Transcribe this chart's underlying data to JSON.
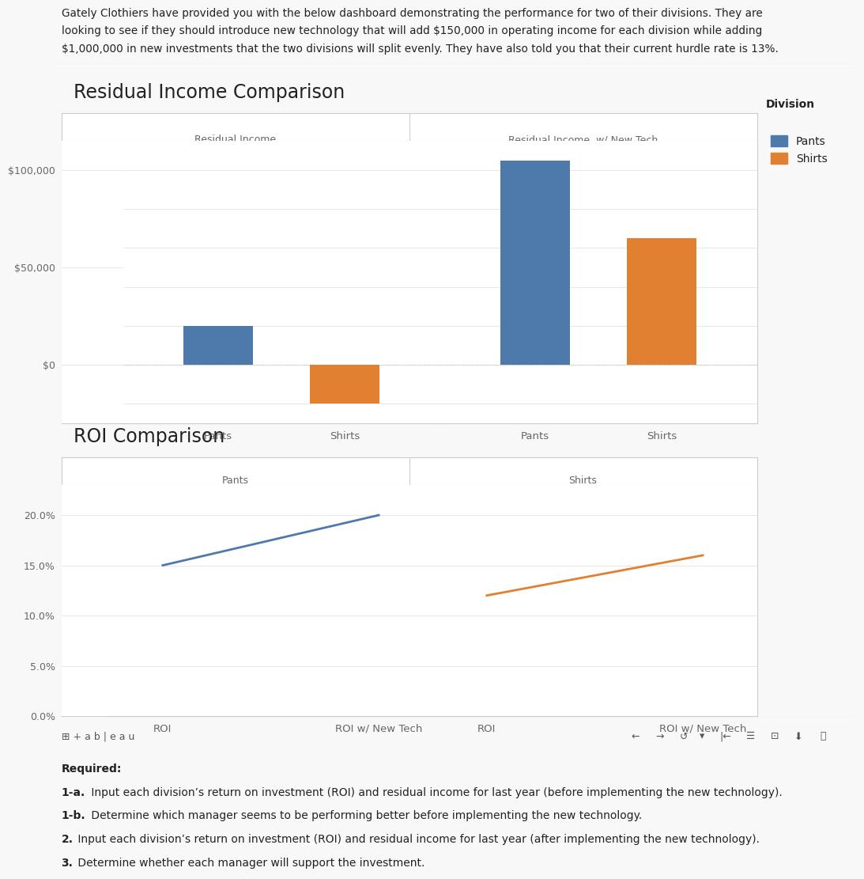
{
  "intro_text_lines": [
    "Gately Clothiers have provided you with the below dashboard demonstrating the performance for two of their divisions. They are",
    "looking to see if they should introduce new technology that will add $150,000 in operating income for each division while adding",
    "$1,000,000 in new investments that the two divisions will split evenly. They have also told you that their current hurdle rate is 13%."
  ],
  "ri_title": "Residual Income Comparison",
  "roi_title": "ROI Comparison",
  "legend_title": "Division",
  "legend_items": [
    "Pants",
    "Shirts"
  ],
  "pants_color": "#4d7aab",
  "shirts_color": "#e08030",
  "ri_pants_before": 20000,
  "ri_shirts_before": -20000,
  "ri_pants_after": 105000,
  "ri_shirts_after": 65000,
  "ri_ylim_min": -30000,
  "ri_ylim_max": 115000,
  "ri_yticks": [
    0,
    50000,
    100000
  ],
  "roi_pants_before": 0.15,
  "roi_pants_after": 0.2,
  "roi_shirts_before": 0.12,
  "roi_shirts_after": 0.16,
  "roi_ylim_min": 0.0,
  "roi_ylim_max": 0.23,
  "roi_yticks": [
    0.0,
    0.05,
    0.1,
    0.15,
    0.2
  ],
  "col_header_ri_left": "Residual Income",
  "col_header_ri_right": "Residual Income  w/ New Tech",
  "col_header_roi_left": "Pants",
  "col_header_roi_right": "Shirts",
  "xticklabels_ri": [
    "Pants",
    "Shirts"
  ],
  "xticklabels_roi": [
    "ROI",
    "ROI w/ New Tech"
  ],
  "required_label": "Required:",
  "required_lines": [
    [
      "1-a.",
      " Input each division’s return on investment (ROI) and residual income for last year (before implementing the new technology)."
    ],
    [
      "1-b.",
      " Determine which manager seems to be performing better before implementing the new technology."
    ],
    [
      "2.",
      " Input each division’s return on investment (ROI) and residual income for last year (after implementing the new technology)."
    ],
    [
      "3.",
      " Determine whether each manager will support the investment."
    ]
  ],
  "bg_color": "#f8f8f8",
  "chart_bg": "#ffffff",
  "grid_color": "#dddddd",
  "tick_color": "#aaaaaa",
  "label_color": "#666666",
  "border_color": "#cccccc",
  "text_color": "#222222",
  "tableau_bg": "#eeeeee"
}
